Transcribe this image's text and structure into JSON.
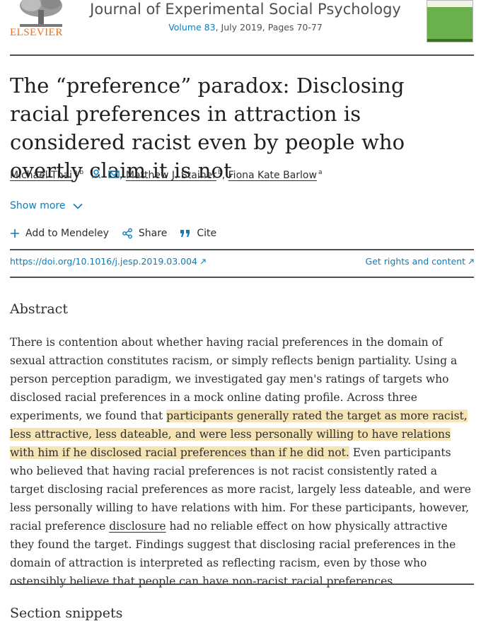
{
  "header": {
    "publisher": "ELSEVIER",
    "journal_title": "Journal of Experimental Social Psychology",
    "volume_link": "Volume 83",
    "issue_info": ", July 2019, Pages 70-77",
    "cover_icon": "journal-cover-thumbnail"
  },
  "article": {
    "title": "The “preference” paradox: Disclosing racial preferences in attraction is considered racist even by people who overtly claim it is not",
    "authors": [
      {
        "name": "Michael Thai",
        "sup": "a b"
      },
      {
        "name": "Matthew J. Stainer",
        "sup": "b"
      },
      {
        "name": "Fiona Kate Barlow",
        "sup": "a"
      }
    ],
    "sep": ",",
    "show_more": "Show more"
  },
  "actions": {
    "add_mendeley": "Add to Mendeley",
    "share": "Share",
    "cite": "Cite"
  },
  "links": {
    "doi": "https://doi.org/10.1016/j.jesp.2019.03.004",
    "rights": "Get rights and content"
  },
  "abstract": {
    "heading": "Abstract",
    "part1": "There is contention about whether having racial preferences in the domain of sexual attraction constitutes racism, or simply reflects benign partiality. Using a person perception paradigm, we investigated gay men's ratings of targets who disclosed racial preferences in a mock online dating profile. Across three experiments, we found that ",
    "highlight": "participants generally rated the target as more racist, less attractive, less dateable, and were less personally willing to have relations with him if he disclosed racial preferences than if he did not.",
    "part2": " Even participants who believed that having racial preferences is not racist consistently rated a target disclosing racial preferences as more racist, largely less dateable, and were less personally willing to have relations with him. For these participants, however, racial preference ",
    "disclosure_link": "disclosure",
    "part3": " had no reliable effect on how physically attractive they found the target. Findings suggest that disclosing racial preferences in the domain of attraction is interpreted as reflecting racism, even by those who ostensibly believe that people can have non-racist racial preferences."
  },
  "section_snippets": "Section snippets",
  "colors": {
    "link": "#0c7dbb",
    "publisher_orange": "#e9711c",
    "highlight": "#f6e4b4",
    "cover_green": "#6ab04c"
  }
}
